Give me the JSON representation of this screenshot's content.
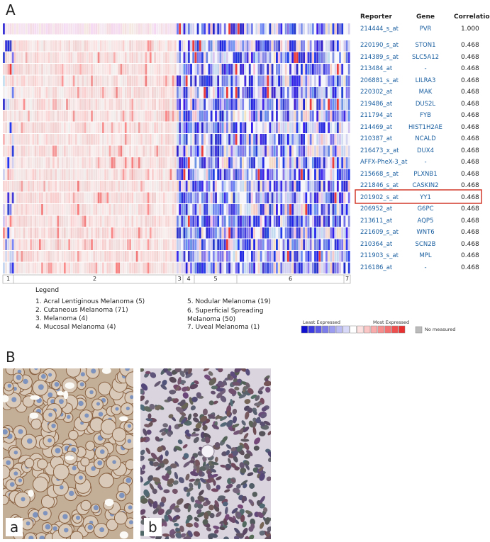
{
  "panel_a": {
    "label": "A",
    "table": {
      "headers": [
        "Reporter",
        "Gene",
        "Correlation"
      ],
      "rows": [
        [
          "214444_s_at",
          "PVR",
          "1.000"
        ],
        [
          "220190_s_at",
          "STON1",
          "0.468"
        ],
        [
          "214389_s_at",
          "SLC5A12",
          "0.468"
        ],
        [
          "213484_at",
          "-",
          "0.468"
        ],
        [
          "206881_s_at",
          "LILRA3",
          "0.468"
        ],
        [
          "220302_at",
          "MAK",
          "0.468"
        ],
        [
          "219486_at",
          "DUS2L",
          "0.468"
        ],
        [
          "211794_at",
          "FYB",
          "0.468"
        ],
        [
          "214469_at",
          "HIST1H2AE",
          "0.468"
        ],
        [
          "210387_at",
          "NCALD",
          "0.468"
        ],
        [
          "216473_x_at",
          "DUX4",
          "0.468"
        ],
        [
          "AFFX-PheX-3_at",
          "-",
          "0.468"
        ],
        [
          "215668_s_at",
          "PLXNB1",
          "0.468"
        ],
        [
          "221846_s_at",
          "CASKIN2",
          "0.468"
        ],
        [
          "201902_s_at",
          "YY1",
          "0.468"
        ],
        [
          "206952_at",
          "G6PC",
          "0.468"
        ],
        [
          "213611_at",
          "AQP5",
          "0.468"
        ],
        [
          "221609_s_at",
          "WNT6",
          "0.468"
        ],
        [
          "210364_at",
          "SCN2B",
          "0.468"
        ],
        [
          "211903_s_at",
          "MPL",
          "0.468"
        ],
        [
          "216186_at",
          "-",
          "0.468"
        ]
      ]
    },
    "heatmap_groups": [
      "1",
      "2",
      "3",
      "4",
      "5",
      "6",
      "7"
    ],
    "legend": {
      "title": "Legend",
      "items": [
        "1. Acral Lentiginous Melanoma (5)",
        "2. Cutaneous Melanoma (71)",
        "3. Melanoma (4)",
        "4. Mucosal Melanoma (4)",
        "5. Nodular Melanoma (19)",
        "6. Superficial Spreading Melanoma (50)",
        "7. Uveal Melanoma (1)"
      ]
    },
    "color_scale": {
      "low": "Least Expressed",
      "high": "Most Expressed",
      "missing": "No measured"
    }
  },
  "panel_b": {
    "label": "B",
    "images": [
      "a",
      "b"
    ]
  }
}
